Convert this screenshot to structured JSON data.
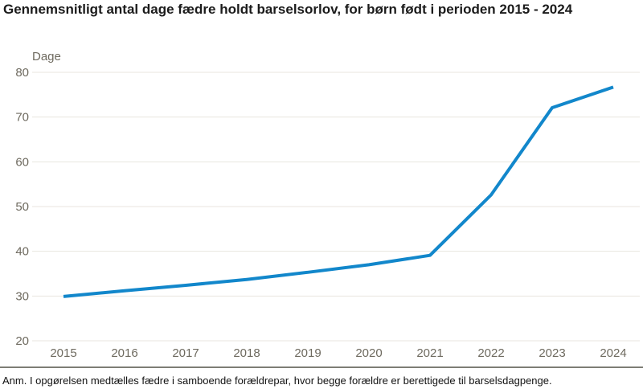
{
  "page": {
    "title": "Gennemsnitligt antal dage fædre holdt barselsorlov, for børn født i perioden 2015 - 2024"
  },
  "chart_data": {
    "type": "line",
    "title": "Gennemsnitligt antal dage fædre holdt barselsorlov, for børn født i perioden 2015 - 2024",
    "ylabel": "Dage",
    "xlabel": "",
    "categories": [
      "2015",
      "2016",
      "2017",
      "2018",
      "2019",
      "2020",
      "2021",
      "2022",
      "2023",
      "2024"
    ],
    "values": [
      29.9,
      31.2,
      32.4,
      33.7,
      35.3,
      37.0,
      39.1,
      52.6,
      72.1,
      76.7
    ],
    "ylim": [
      20,
      80
    ],
    "yticks": [
      80,
      70,
      60,
      50,
      40,
      30,
      20
    ],
    "grid": true,
    "legend": false,
    "line_color": "#1287cb"
  },
  "footer": {
    "note": "Anm. I opgørelsen medtælles fædre i samboende forældrepar, hvor begge forældre er berettigede til barselsdagpenge."
  },
  "colors": {
    "line": "#1287cb",
    "axis_text": "#6e6a5f",
    "gridline": "#e8e6df",
    "baseline": "#7d7d75",
    "title_text": "#1b1b1b"
  }
}
